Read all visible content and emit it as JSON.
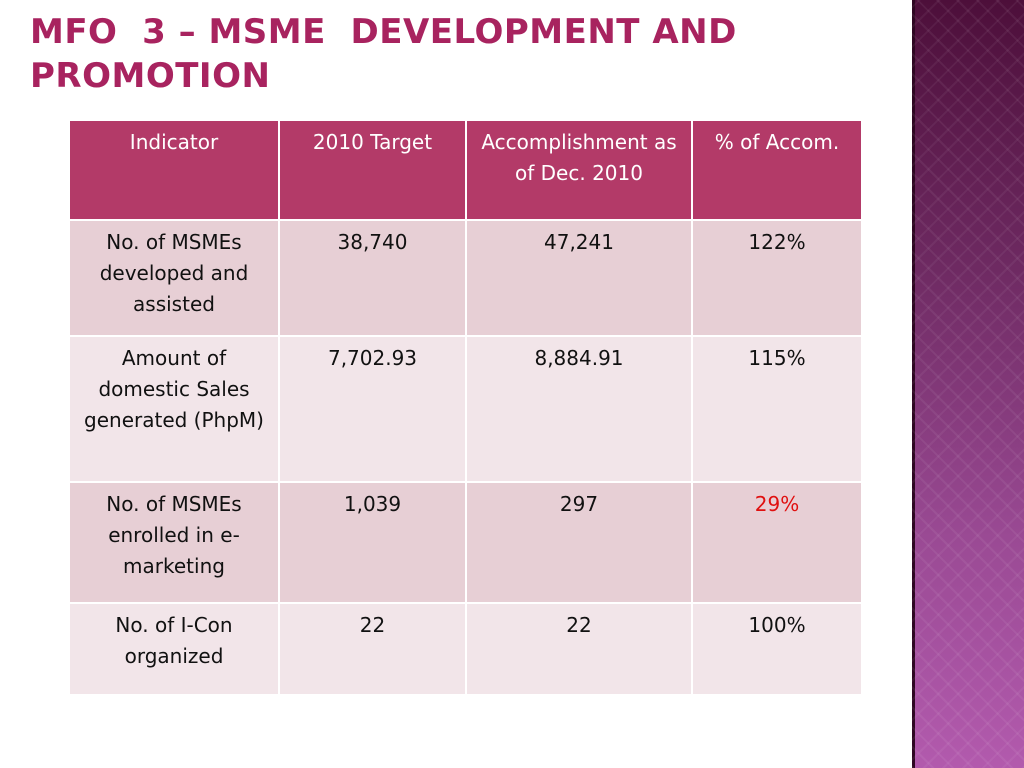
{
  "slide": {
    "title": "MFO  3 – MSME  DEVELOPMENT AND\nPROMOTION"
  },
  "table": {
    "headers": [
      "Indicator",
      "2010 Target",
      "Accomplishment as of Dec. 2010",
      "% of Accom."
    ],
    "rows": [
      {
        "indicator": "No. of MSMEs developed and assisted",
        "target": "38,740",
        "accomplishment": "47,241",
        "percent": "122%"
      },
      {
        "indicator": "Amount of domestic Sales generated (PhpM)",
        "target": "7,702.93",
        "accomplishment": "8,884.91",
        "percent": "115%"
      },
      {
        "indicator": "No. of MSMEs enrolled in e-marketing",
        "target": "1,039",
        "accomplishment": "297",
        "percent_number": "29",
        "percent_sign": "%"
      },
      {
        "indicator": "No. of I-Con organized",
        "target": "22",
        "accomplishment": "22",
        "percent": "100%"
      }
    ]
  },
  "colors": {
    "title": "#a8235f",
    "header_bg": "#b33a68",
    "row_odd_bg": "#e7cfd5",
    "row_even_bg": "#f2e5e9",
    "highlight": "#e01010",
    "side_band": "#6e2a62"
  }
}
